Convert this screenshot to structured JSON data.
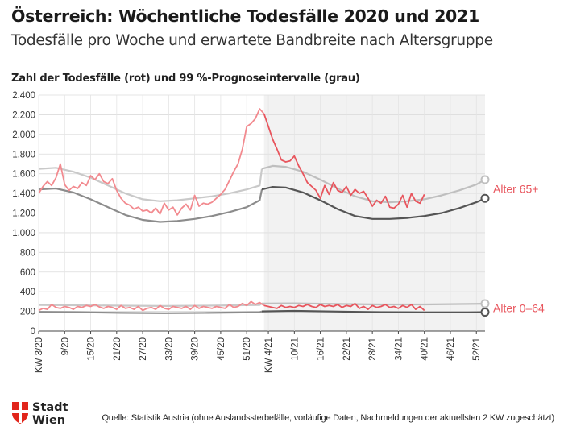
{
  "header": {
    "title": "Österreich: Wöchentliche Todesfälle 2020 und 2021",
    "subtitle": "Todesfälle pro Woche und erwartete Bandbreite nach Altersgruppe"
  },
  "footer": {
    "logo_line1": "Stadt",
    "logo_line2": "Wien",
    "source": "Quelle: Statistik Austria (ohne Auslandssterbefälle, vorläufige Daten, Nachmeldungen der aktuellsten 2 KW zugeschätzt)"
  },
  "colors": {
    "observed": "#f28a8f",
    "observed_2021": "#e8555d",
    "band_upper": "#c9c9c9",
    "band_lower": "#8c8c8c",
    "band_upper_2021": "#bfbfbf",
    "band_lower_2021": "#555555",
    "shade_2021": "#f2f2f2",
    "logo_red": "#e1251b"
  },
  "chart_data": {
    "type": "line",
    "ylabel": "Zahl der Todesfälle (rot) und 99 %-Prognoseintervalle (grau)",
    "ylim": [
      0,
      2400
    ],
    "yticks": [
      0,
      200,
      400,
      600,
      800,
      1000,
      1200,
      1400,
      1600,
      1800,
      2000,
      2200,
      2400
    ],
    "ytick_labels": [
      "0",
      "200",
      "400",
      "600",
      "800",
      "1.000",
      "1.200",
      "1.400",
      "1.600",
      "1.800",
      "2.000",
      "2.200",
      "2.400"
    ],
    "x_unit": "Kalenderwoche (fortlaufend ab KW 3/2020)",
    "xlim": [
      1,
      104
    ],
    "xticks": [
      1,
      7,
      13,
      19,
      25,
      31,
      37,
      43,
      49,
      54,
      60,
      66,
      72,
      78,
      84,
      90,
      96,
      102
    ],
    "xtick_labels": [
      "KW 3/20",
      "9/20",
      "15/20",
      "21/20",
      "27/20",
      "33/20",
      "39/20",
      "45/20",
      "51/20",
      "KW 4/21",
      "10/21",
      "16/21",
      "22/21",
      "28/21",
      "34/21",
      "40/21",
      "46/21",
      "52/21"
    ],
    "shaded_from": 53,
    "grid": true,
    "series": [
      {
        "name": "Alter 65+",
        "label": "Alter 65+",
        "observed": [
          [
            1,
            1400
          ],
          [
            2,
            1470
          ],
          [
            3,
            1520
          ],
          [
            4,
            1480
          ],
          [
            5,
            1560
          ],
          [
            6,
            1700
          ],
          [
            7,
            1490
          ],
          [
            8,
            1430
          ],
          [
            9,
            1470
          ],
          [
            10,
            1450
          ],
          [
            11,
            1510
          ],
          [
            12,
            1480
          ],
          [
            13,
            1580
          ],
          [
            14,
            1540
          ],
          [
            15,
            1600
          ],
          [
            16,
            1520
          ],
          [
            17,
            1500
          ],
          [
            18,
            1550
          ],
          [
            19,
            1430
          ],
          [
            20,
            1350
          ],
          [
            21,
            1300
          ],
          [
            22,
            1280
          ],
          [
            23,
            1240
          ],
          [
            24,
            1260
          ],
          [
            25,
            1220
          ],
          [
            26,
            1230
          ],
          [
            27,
            1200
          ],
          [
            28,
            1250
          ],
          [
            29,
            1190
          ],
          [
            30,
            1300
          ],
          [
            31,
            1230
          ],
          [
            32,
            1260
          ],
          [
            33,
            1180
          ],
          [
            34,
            1250
          ],
          [
            35,
            1290
          ],
          [
            36,
            1230
          ],
          [
            37,
            1380
          ],
          [
            38,
            1270
          ],
          [
            39,
            1300
          ],
          [
            40,
            1290
          ],
          [
            41,
            1310
          ],
          [
            42,
            1350
          ],
          [
            43,
            1390
          ],
          [
            44,
            1440
          ],
          [
            45,
            1530
          ],
          [
            46,
            1620
          ],
          [
            47,
            1700
          ],
          [
            48,
            1850
          ],
          [
            49,
            2080
          ],
          [
            50,
            2110
          ],
          [
            51,
            2160
          ],
          [
            52,
            2260
          ],
          [
            53,
            2210
          ],
          [
            54,
            2080
          ],
          [
            55,
            1950
          ],
          [
            56,
            1850
          ],
          [
            57,
            1740
          ],
          [
            58,
            1720
          ],
          [
            59,
            1730
          ],
          [
            60,
            1780
          ],
          [
            61,
            1680
          ],
          [
            62,
            1600
          ],
          [
            63,
            1510
          ],
          [
            64,
            1470
          ],
          [
            65,
            1430
          ],
          [
            66,
            1350
          ],
          [
            67,
            1480
          ],
          [
            68,
            1390
          ],
          [
            69,
            1510
          ],
          [
            70,
            1430
          ],
          [
            71,
            1410
          ],
          [
            72,
            1470
          ],
          [
            73,
            1380
          ],
          [
            74,
            1440
          ],
          [
            75,
            1400
          ],
          [
            76,
            1420
          ],
          [
            77,
            1350
          ],
          [
            78,
            1270
          ],
          [
            79,
            1330
          ],
          [
            80,
            1300
          ],
          [
            81,
            1370
          ],
          [
            82,
            1260
          ],
          [
            83,
            1250
          ],
          [
            84,
            1290
          ],
          [
            85,
            1380
          ],
          [
            86,
            1260
          ],
          [
            87,
            1400
          ],
          [
            88,
            1320
          ],
          [
            89,
            1300
          ],
          [
            90,
            1390
          ]
        ],
        "band_upper": [
          [
            1,
            1650
          ],
          [
            5,
            1660
          ],
          [
            9,
            1620
          ],
          [
            13,
            1560
          ],
          [
            17,
            1480
          ],
          [
            21,
            1400
          ],
          [
            25,
            1340
          ],
          [
            29,
            1320
          ],
          [
            33,
            1330
          ],
          [
            37,
            1350
          ],
          [
            41,
            1370
          ],
          [
            45,
            1400
          ],
          [
            49,
            1440
          ],
          [
            52,
            1480
          ],
          [
            52.5,
            1650
          ],
          [
            55,
            1680
          ],
          [
            58,
            1670
          ],
          [
            62,
            1620
          ],
          [
            66,
            1540
          ],
          [
            70,
            1450
          ],
          [
            74,
            1370
          ],
          [
            78,
            1320
          ],
          [
            82,
            1310
          ],
          [
            86,
            1320
          ],
          [
            90,
            1340
          ],
          [
            94,
            1380
          ],
          [
            98,
            1430
          ],
          [
            102,
            1490
          ],
          [
            104,
            1540
          ]
        ],
        "band_lower": [
          [
            1,
            1440
          ],
          [
            5,
            1450
          ],
          [
            9,
            1410
          ],
          [
            13,
            1340
          ],
          [
            17,
            1260
          ],
          [
            21,
            1180
          ],
          [
            25,
            1130
          ],
          [
            29,
            1110
          ],
          [
            33,
            1120
          ],
          [
            37,
            1140
          ],
          [
            41,
            1170
          ],
          [
            45,
            1210
          ],
          [
            49,
            1260
          ],
          [
            52,
            1330
          ],
          [
            52.5,
            1440
          ],
          [
            55,
            1465
          ],
          [
            58,
            1460
          ],
          [
            62,
            1410
          ],
          [
            66,
            1330
          ],
          [
            70,
            1240
          ],
          [
            74,
            1170
          ],
          [
            78,
            1140
          ],
          [
            82,
            1140
          ],
          [
            86,
            1150
          ],
          [
            90,
            1170
          ],
          [
            94,
            1200
          ],
          [
            98,
            1250
          ],
          [
            102,
            1310
          ],
          [
            104,
            1350
          ]
        ]
      },
      {
        "name": "Alter 0–64",
        "label": "Alter 0–64",
        "observed": [
          [
            1,
            210
          ],
          [
            2,
            230
          ],
          [
            3,
            220
          ],
          [
            4,
            270
          ],
          [
            5,
            240
          ],
          [
            6,
            230
          ],
          [
            7,
            250
          ],
          [
            8,
            240
          ],
          [
            9,
            220
          ],
          [
            10,
            250
          ],
          [
            11,
            240
          ],
          [
            12,
            260
          ],
          [
            13,
            250
          ],
          [
            14,
            270
          ],
          [
            15,
            245
          ],
          [
            16,
            230
          ],
          [
            17,
            250
          ],
          [
            18,
            240
          ],
          [
            19,
            220
          ],
          [
            20,
            260
          ],
          [
            21,
            230
          ],
          [
            22,
            240
          ],
          [
            23,
            220
          ],
          [
            24,
            250
          ],
          [
            25,
            210
          ],
          [
            26,
            230
          ],
          [
            27,
            240
          ],
          [
            28,
            220
          ],
          [
            29,
            260
          ],
          [
            30,
            230
          ],
          [
            31,
            220
          ],
          [
            32,
            250
          ],
          [
            33,
            240
          ],
          [
            34,
            230
          ],
          [
            35,
            250
          ],
          [
            36,
            220
          ],
          [
            37,
            260
          ],
          [
            38,
            230
          ],
          [
            39,
            250
          ],
          [
            40,
            240
          ],
          [
            41,
            230
          ],
          [
            42,
            250
          ],
          [
            43,
            240
          ],
          [
            44,
            230
          ],
          [
            45,
            270
          ],
          [
            46,
            240
          ],
          [
            47,
            250
          ],
          [
            48,
            280
          ],
          [
            49,
            260
          ],
          [
            50,
            300
          ],
          [
            51,
            270
          ],
          [
            52,
            290
          ],
          [
            53,
            260
          ],
          [
            54,
            250
          ],
          [
            55,
            240
          ],
          [
            56,
            230
          ],
          [
            57,
            260
          ],
          [
            58,
            240
          ],
          [
            59,
            250
          ],
          [
            60,
            240
          ],
          [
            61,
            260
          ],
          [
            62,
            250
          ],
          [
            63,
            270
          ],
          [
            64,
            250
          ],
          [
            65,
            240
          ],
          [
            66,
            270
          ],
          [
            67,
            250
          ],
          [
            68,
            260
          ],
          [
            69,
            250
          ],
          [
            70,
            270
          ],
          [
            71,
            240
          ],
          [
            72,
            260
          ],
          [
            73,
            250
          ],
          [
            74,
            280
          ],
          [
            75,
            230
          ],
          [
            76,
            250
          ],
          [
            77,
            220
          ],
          [
            78,
            260
          ],
          [
            79,
            240
          ],
          [
            80,
            250
          ],
          [
            81,
            270
          ],
          [
            82,
            240
          ],
          [
            83,
            250
          ],
          [
            84,
            230
          ],
          [
            85,
            260
          ],
          [
            86,
            240
          ],
          [
            87,
            270
          ],
          [
            88,
            220
          ],
          [
            89,
            250
          ],
          [
            90,
            210
          ]
        ],
        "band_upper": [
          [
            1,
            265
          ],
          [
            10,
            262
          ],
          [
            20,
            258
          ],
          [
            30,
            255
          ],
          [
            40,
            258
          ],
          [
            52,
            265
          ],
          [
            52.5,
            280
          ],
          [
            60,
            282
          ],
          [
            70,
            275
          ],
          [
            80,
            270
          ],
          [
            90,
            270
          ],
          [
            100,
            275
          ],
          [
            104,
            278
          ]
        ],
        "band_lower": [
          [
            1,
            195
          ],
          [
            10,
            192
          ],
          [
            20,
            185
          ],
          [
            30,
            182
          ],
          [
            40,
            185
          ],
          [
            52,
            192
          ],
          [
            52.5,
            200
          ],
          [
            60,
            205
          ],
          [
            70,
            198
          ],
          [
            80,
            192
          ],
          [
            90,
            190
          ],
          [
            100,
            190
          ],
          [
            104,
            192
          ]
        ]
      }
    ]
  }
}
